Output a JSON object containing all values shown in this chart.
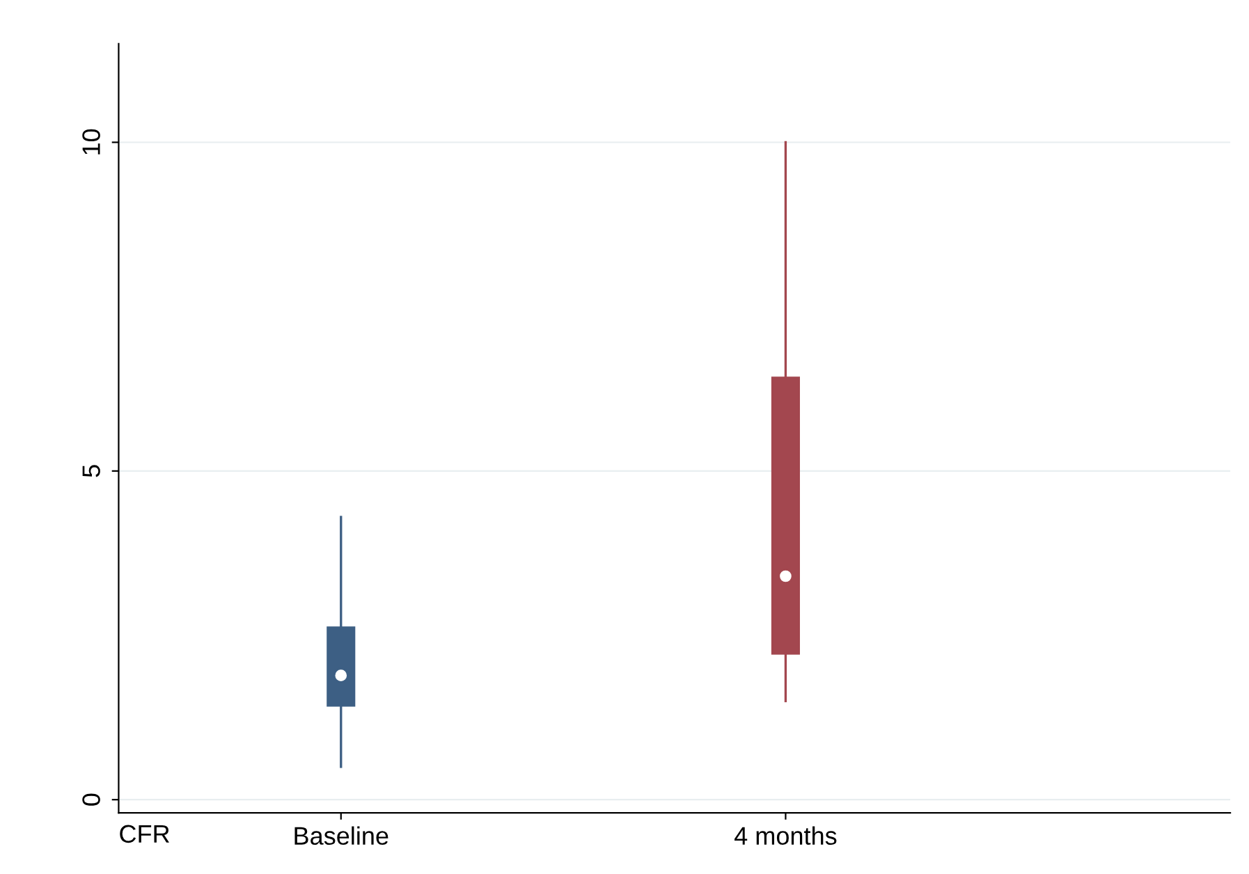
{
  "chart_data": {
    "type": "box",
    "xlabel": "CFR",
    "categories": [
      "Baseline",
      "4 months"
    ],
    "series": [
      {
        "color": "#3d5f84",
        "boxes": [
          {
            "low": 0.5,
            "q1": 1.43,
            "median": 1.89,
            "q3": 2.62,
            "high": 4.3
          },
          null
        ]
      },
      {
        "color": "#a3474f",
        "boxes": [
          null,
          {
            "low": 1.5,
            "q1": 2.22,
            "median": 3.4,
            "q3": 6.42,
            "high": 10.0
          }
        ]
      }
    ],
    "ylim": [
      -0.2,
      11.5
    ],
    "yticks": [
      0,
      5,
      10
    ],
    "grid": "y"
  }
}
